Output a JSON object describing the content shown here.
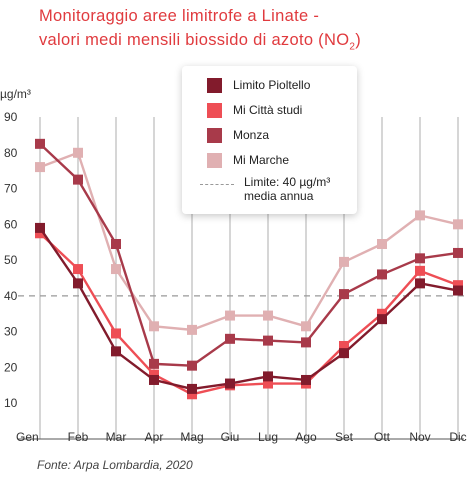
{
  "title_line1": "Monitoraggio aree limitrofe a Linate -",
  "title_line2": "valori medi mensili biossido di azoto (NO",
  "title_sub": "2",
  "title_close": ")",
  "source": "Fonte: Arpa Lombardia, 2020",
  "legend_limit_line1": "Limite: 40 µg/m³",
  "legend_limit_line2": "media annua",
  "chart_data": {
    "type": "line",
    "ylabel": "µg/m³",
    "ylim": [
      0,
      90
    ],
    "yticks": [
      10,
      20,
      30,
      40,
      50,
      60,
      70,
      80,
      90
    ],
    "x": [
      "Gen",
      "Feb",
      "Mar",
      "Apr",
      "Mag",
      "Giu",
      "Lug",
      "Ago",
      "Set",
      "Ott",
      "Nov",
      "Dic"
    ],
    "grid": "vertical",
    "legend": "top-right",
    "reference_line": {
      "value": 40,
      "label": "Limite: 40 µg/m³ media annua",
      "color": "#999999"
    },
    "series": [
      {
        "name": "Limito Pioltello",
        "color": "#821b2c",
        "values": [
          59,
          43.5,
          24.5,
          16.5,
          14,
          15.5,
          17.5,
          16.5,
          24,
          33.5,
          43.5,
          41.5
        ]
      },
      {
        "name": "Mi Città studi",
        "color": "#ee4e55",
        "values": [
          57.5,
          47.5,
          29.5,
          18,
          12.5,
          15,
          15.5,
          15.5,
          26,
          35,
          47,
          43
        ]
      },
      {
        "name": "Monza",
        "color": "#a83a4a",
        "values": [
          82.5,
          72.5,
          54.5,
          21,
          20.5,
          28,
          27.5,
          27,
          40.5,
          46,
          50.5,
          52
        ]
      },
      {
        "name": "Mi Marche",
        "color": "#e0b0b2",
        "values": [
          76,
          80,
          47.5,
          31.5,
          30.5,
          34.5,
          34.5,
          31.5,
          49.5,
          54.5,
          62.5,
          60
        ]
      }
    ]
  }
}
